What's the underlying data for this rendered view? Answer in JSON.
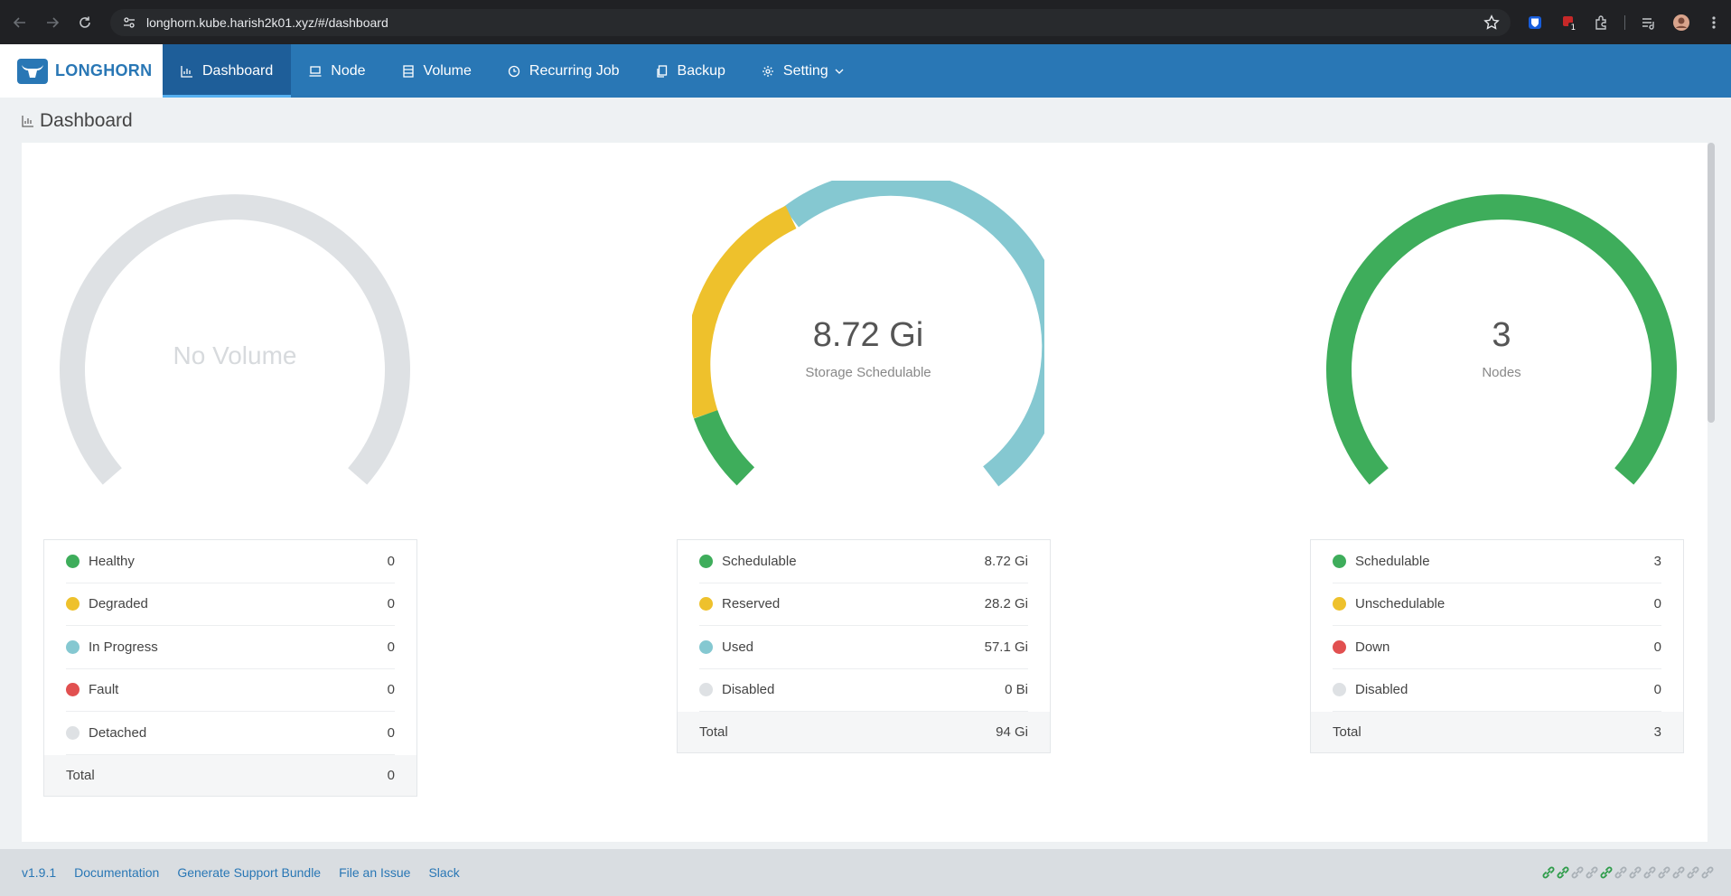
{
  "browser": {
    "url": "longhorn.kube.harish2k01.xyz/#/dashboard",
    "extension_badge": "1"
  },
  "header": {
    "brand": "LONGHORN",
    "menu": [
      {
        "label": "Dashboard",
        "icon": "bar-chart-icon",
        "active": true
      },
      {
        "label": "Node",
        "icon": "laptop-icon",
        "active": false
      },
      {
        "label": "Volume",
        "icon": "database-icon",
        "active": false
      },
      {
        "label": "Recurring Job",
        "icon": "clock-icon",
        "active": false
      },
      {
        "label": "Backup",
        "icon": "copy-icon",
        "active": false
      },
      {
        "label": "Setting",
        "icon": "gear-icon",
        "active": false,
        "dropdown": true
      }
    ]
  },
  "page": {
    "title": "Dashboard"
  },
  "volume": {
    "center_text": "No Volume",
    "rows": [
      {
        "label": "Healthy",
        "value": "0",
        "color": "#3ead5b"
      },
      {
        "label": "Degraded",
        "value": "0",
        "color": "#eec12c"
      },
      {
        "label": "In Progress",
        "value": "0",
        "color": "#85c8d1"
      },
      {
        "label": "Fault",
        "value": "0",
        "color": "#e15050"
      },
      {
        "label": "Detached",
        "value": "0",
        "color": "#dee1e4"
      }
    ],
    "total_label": "Total",
    "total_value": "0"
  },
  "storage": {
    "center_value": "8.72 Gi",
    "center_label": "Storage Schedulable",
    "rows": [
      {
        "label": "Schedulable",
        "value": "8.72 Gi",
        "color": "#3ead5b"
      },
      {
        "label": "Reserved",
        "value": "28.2 Gi",
        "color": "#eec12c"
      },
      {
        "label": "Used",
        "value": "57.1 Gi",
        "color": "#85c8d1"
      },
      {
        "label": "Disabled",
        "value": "0 Bi",
        "color": "#dee1e4"
      }
    ],
    "total_label": "Total",
    "total_value": "94 Gi"
  },
  "nodes": {
    "center_value": "3",
    "center_label": "Nodes",
    "rows": [
      {
        "label": "Schedulable",
        "value": "3",
        "color": "#3ead5b"
      },
      {
        "label": "Unschedulable",
        "value": "0",
        "color": "#eec12c"
      },
      {
        "label": "Down",
        "value": "0",
        "color": "#e15050"
      },
      {
        "label": "Disabled",
        "value": "0",
        "color": "#dee1e4"
      }
    ],
    "total_label": "Total",
    "total_value": "3"
  },
  "footer": {
    "version": "v1.9.1",
    "links": [
      "Documentation",
      "Generate Support Bundle",
      "File an Issue",
      "Slack"
    ],
    "status_links": {
      "connected": 3,
      "disconnected": 9,
      "connected_color": "#2e9c4a",
      "disconnected_color": "#a9b0b6"
    }
  }
}
